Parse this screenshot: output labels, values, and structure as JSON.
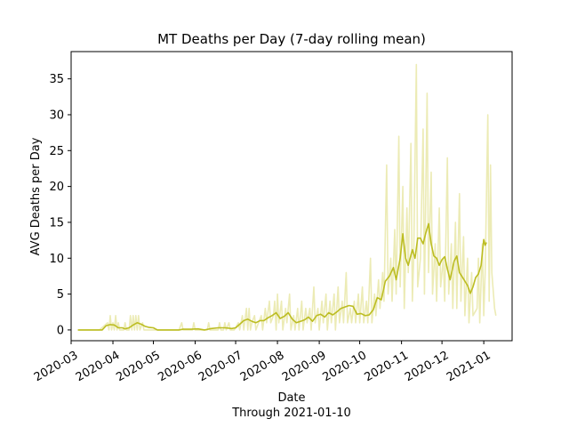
{
  "chart_data": {
    "type": "line",
    "title": "MT Deaths per Day (7-day rolling mean)",
    "xlabel": "Date",
    "xlabel_note": "Through 2021-01-10",
    "ylabel": "AVG Deaths per Day",
    "xlim": [
      "2020-03-01",
      "2021-01-22"
    ],
    "ylim": [
      -1.5,
      38.8
    ],
    "x_ticks": [
      "2020-03-01",
      "2020-04-01",
      "2020-05-01",
      "2020-06-01",
      "2020-07-01",
      "2020-08-01",
      "2020-09-01",
      "2020-10-01",
      "2020-11-01",
      "2020-12-01",
      "2021-01-01"
    ],
    "x_tick_labels": [
      "2020-03",
      "2020-04",
      "2020-05",
      "2020-06",
      "2020-07",
      "2020-08",
      "2020-09",
      "2020-10",
      "2020-11",
      "2020-12",
      "2021-01"
    ],
    "y_ticks": [
      0,
      5,
      10,
      15,
      20,
      25,
      30,
      35
    ],
    "y_tick_labels": [
      "0",
      "5",
      "10",
      "15",
      "20",
      "25",
      "30",
      "35"
    ],
    "grid": false,
    "legend": "none",
    "colors": {
      "mean": "#bcbd22",
      "daily": "#ecebb5"
    },
    "series": [
      {
        "role": "daily",
        "points": [
          [
            "2020-03-06",
            0
          ],
          [
            "2020-03-15",
            0
          ],
          [
            "2020-03-22",
            0
          ],
          [
            "2020-03-28",
            1
          ],
          [
            "2020-03-29",
            0
          ],
          [
            "2020-03-30",
            2
          ],
          [
            "2020-03-31",
            0
          ],
          [
            "2020-04-01",
            1
          ],
          [
            "2020-04-02",
            0
          ],
          [
            "2020-04-03",
            2
          ],
          [
            "2020-04-04",
            0
          ],
          [
            "2020-04-05",
            1
          ],
          [
            "2020-04-06",
            0
          ],
          [
            "2020-04-09",
            0
          ],
          [
            "2020-04-10",
            1
          ],
          [
            "2020-04-11",
            0
          ],
          [
            "2020-04-13",
            0
          ],
          [
            "2020-04-14",
            2
          ],
          [
            "2020-04-15",
            0
          ],
          [
            "2020-04-16",
            2
          ],
          [
            "2020-04-17",
            0
          ],
          [
            "2020-04-18",
            2
          ],
          [
            "2020-04-19",
            0
          ],
          [
            "2020-04-20",
            2
          ],
          [
            "2020-04-21",
            0
          ],
          [
            "2020-04-23",
            1
          ],
          [
            "2020-04-24",
            0
          ],
          [
            "2020-05-01",
            0
          ],
          [
            "2020-05-20",
            0
          ],
          [
            "2020-05-22",
            1
          ],
          [
            "2020-05-23",
            0
          ],
          [
            "2020-05-30",
            0
          ],
          [
            "2020-05-31",
            1
          ],
          [
            "2020-06-01",
            0
          ],
          [
            "2020-06-10",
            0
          ],
          [
            "2020-06-11",
            1
          ],
          [
            "2020-06-12",
            0
          ],
          [
            "2020-06-18",
            0
          ],
          [
            "2020-06-19",
            1
          ],
          [
            "2020-06-20",
            0
          ],
          [
            "2020-06-22",
            0
          ],
          [
            "2020-06-23",
            1
          ],
          [
            "2020-06-24",
            0
          ],
          [
            "2020-06-26",
            1
          ],
          [
            "2020-06-27",
            0
          ],
          [
            "2020-06-30",
            0
          ],
          [
            "2020-07-03",
            1
          ],
          [
            "2020-07-04",
            0
          ],
          [
            "2020-07-06",
            2
          ],
          [
            "2020-07-07",
            0
          ],
          [
            "2020-07-09",
            3
          ],
          [
            "2020-07-10",
            0
          ],
          [
            "2020-07-11",
            3
          ],
          [
            "2020-07-12",
            0
          ],
          [
            "2020-07-13",
            1
          ],
          [
            "2020-07-15",
            2
          ],
          [
            "2020-07-16",
            0
          ],
          [
            "2020-07-18",
            1
          ],
          [
            "2020-07-20",
            2
          ],
          [
            "2020-07-21",
            0
          ],
          [
            "2020-07-23",
            3
          ],
          [
            "2020-07-24",
            1
          ],
          [
            "2020-07-26",
            4
          ],
          [
            "2020-07-27",
            1
          ],
          [
            "2020-07-29",
            2
          ],
          [
            "2020-07-30",
            4
          ],
          [
            "2020-07-31",
            0
          ],
          [
            "2020-08-01",
            5
          ],
          [
            "2020-08-02",
            1
          ],
          [
            "2020-08-04",
            4
          ],
          [
            "2020-08-05",
            0
          ],
          [
            "2020-08-07",
            3
          ],
          [
            "2020-08-08",
            1
          ],
          [
            "2020-08-10",
            5
          ],
          [
            "2020-08-11",
            0
          ],
          [
            "2020-08-13",
            2
          ],
          [
            "2020-08-14",
            0
          ],
          [
            "2020-08-16",
            3
          ],
          [
            "2020-08-17",
            0
          ],
          [
            "2020-08-19",
            4
          ],
          [
            "2020-08-20",
            0
          ],
          [
            "2020-08-22",
            3
          ],
          [
            "2020-08-23",
            1
          ],
          [
            "2020-08-25",
            3
          ],
          [
            "2020-08-26",
            0
          ],
          [
            "2020-08-28",
            6
          ],
          [
            "2020-08-29",
            1
          ],
          [
            "2020-08-31",
            3
          ],
          [
            "2020-09-01",
            0
          ],
          [
            "2020-09-03",
            4
          ],
          [
            "2020-09-04",
            1
          ],
          [
            "2020-09-06",
            5
          ],
          [
            "2020-09-07",
            0
          ],
          [
            "2020-09-09",
            4
          ],
          [
            "2020-09-10",
            1
          ],
          [
            "2020-09-12",
            5
          ],
          [
            "2020-09-13",
            0
          ],
          [
            "2020-09-15",
            6
          ],
          [
            "2020-09-16",
            1
          ],
          [
            "2020-09-18",
            4
          ],
          [
            "2020-09-19",
            1
          ],
          [
            "2020-09-21",
            8
          ],
          [
            "2020-09-22",
            1
          ],
          [
            "2020-09-24",
            3
          ],
          [
            "2020-09-25",
            1
          ],
          [
            "2020-09-27",
            4
          ],
          [
            "2020-09-28",
            1
          ],
          [
            "2020-09-30",
            5
          ],
          [
            "2020-10-01",
            1
          ],
          [
            "2020-10-03",
            6
          ],
          [
            "2020-10-04",
            1
          ],
          [
            "2020-10-06",
            4
          ],
          [
            "2020-10-07",
            1
          ],
          [
            "2020-10-09",
            10
          ],
          [
            "2020-10-10",
            1
          ],
          [
            "2020-10-12",
            5
          ],
          [
            "2020-10-13",
            2
          ],
          [
            "2020-10-15",
            7
          ],
          [
            "2020-10-16",
            3
          ],
          [
            "2020-10-18",
            8
          ],
          [
            "2020-10-19",
            4
          ],
          [
            "2020-10-21",
            23
          ],
          [
            "2020-10-22",
            5
          ],
          [
            "2020-10-24",
            10
          ],
          [
            "2020-10-25",
            4
          ],
          [
            "2020-10-27",
            14
          ],
          [
            "2020-10-28",
            5
          ],
          [
            "2020-10-30",
            27
          ],
          [
            "2020-10-31",
            6
          ],
          [
            "2020-11-02",
            20
          ],
          [
            "2020-11-03",
            3
          ],
          [
            "2020-11-05",
            17
          ],
          [
            "2020-11-06",
            8
          ],
          [
            "2020-11-08",
            26
          ],
          [
            "2020-11-09",
            4
          ],
          [
            "2020-11-10",
            10
          ],
          [
            "2020-11-12",
            37
          ],
          [
            "2020-11-13",
            6
          ],
          [
            "2020-11-15",
            10
          ],
          [
            "2020-11-17",
            28
          ],
          [
            "2020-11-18",
            5
          ],
          [
            "2020-11-20",
            33
          ],
          [
            "2020-11-21",
            8
          ],
          [
            "2020-11-23",
            22
          ],
          [
            "2020-11-24",
            5
          ],
          [
            "2020-11-26",
            12
          ],
          [
            "2020-11-27",
            4
          ],
          [
            "2020-11-29",
            17
          ],
          [
            "2020-11-30",
            6
          ],
          [
            "2020-12-02",
            10
          ],
          [
            "2020-12-03",
            4
          ],
          [
            "2020-12-05",
            24
          ],
          [
            "2020-12-06",
            5
          ],
          [
            "2020-12-08",
            12
          ],
          [
            "2020-12-09",
            3
          ],
          [
            "2020-12-11",
            15
          ],
          [
            "2020-12-12",
            3
          ],
          [
            "2020-12-14",
            19
          ],
          [
            "2020-12-15",
            4
          ],
          [
            "2020-12-17",
            13
          ],
          [
            "2020-12-18",
            2
          ],
          [
            "2020-12-20",
            10
          ],
          [
            "2020-12-21",
            1
          ],
          [
            "2020-12-23",
            8
          ],
          [
            "2020-12-24",
            2
          ],
          [
            "2020-12-27",
            3
          ],
          [
            "2020-12-28",
            10
          ],
          [
            "2020-12-29",
            1
          ],
          [
            "2020-12-31",
            12
          ],
          [
            "2021-01-01",
            2
          ],
          [
            "2021-01-02",
            8
          ],
          [
            "2021-01-04",
            30
          ],
          [
            "2021-01-05",
            4
          ],
          [
            "2021-01-06",
            23
          ],
          [
            "2021-01-07",
            8
          ],
          [
            "2021-01-09",
            3
          ],
          [
            "2021-01-10",
            2
          ]
        ]
      },
      {
        "role": "mean",
        "points": [
          [
            "2020-03-06",
            0
          ],
          [
            "2020-03-20",
            0
          ],
          [
            "2020-03-24",
            0
          ],
          [
            "2020-03-27",
            0.6
          ],
          [
            "2020-03-30",
            0.75
          ],
          [
            "2020-04-02",
            0.7
          ],
          [
            "2020-04-05",
            0.3
          ],
          [
            "2020-04-08",
            0.3
          ],
          [
            "2020-04-10",
            0.15
          ],
          [
            "2020-04-13",
            0.3
          ],
          [
            "2020-04-16",
            0.7
          ],
          [
            "2020-04-19",
            1.0
          ],
          [
            "2020-04-22",
            0.8
          ],
          [
            "2020-04-25",
            0.5
          ],
          [
            "2020-04-28",
            0.35
          ],
          [
            "2020-05-01",
            0.3
          ],
          [
            "2020-05-04",
            0
          ],
          [
            "2020-05-20",
            0
          ],
          [
            "2020-05-23",
            0.1
          ],
          [
            "2020-05-29",
            0.1
          ],
          [
            "2020-06-03",
            0.15
          ],
          [
            "2020-06-08",
            0
          ],
          [
            "2020-06-13",
            0.2
          ],
          [
            "2020-06-18",
            0.3
          ],
          [
            "2020-06-23",
            0.3
          ],
          [
            "2020-06-28",
            0.2
          ],
          [
            "2020-07-01",
            0.3
          ],
          [
            "2020-07-04",
            0.8
          ],
          [
            "2020-07-07",
            1.3
          ],
          [
            "2020-07-10",
            1.5
          ],
          [
            "2020-07-13",
            1.2
          ],
          [
            "2020-07-16",
            1.0
          ],
          [
            "2020-07-19",
            1.3
          ],
          [
            "2020-07-22",
            1.3
          ],
          [
            "2020-07-25",
            1.7
          ],
          [
            "2020-07-28",
            2.0
          ],
          [
            "2020-07-31",
            2.4
          ],
          [
            "2020-08-03",
            1.6
          ],
          [
            "2020-08-06",
            1.9
          ],
          [
            "2020-08-09",
            2.4
          ],
          [
            "2020-08-12",
            1.5
          ],
          [
            "2020-08-15",
            1.0
          ],
          [
            "2020-08-18",
            1.2
          ],
          [
            "2020-08-21",
            1.4
          ],
          [
            "2020-08-24",
            1.8
          ],
          [
            "2020-08-27",
            1.2
          ],
          [
            "2020-08-30",
            2.0
          ],
          [
            "2020-09-02",
            2.2
          ],
          [
            "2020-09-05",
            1.8
          ],
          [
            "2020-09-08",
            2.4
          ],
          [
            "2020-09-11",
            2.1
          ],
          [
            "2020-09-14",
            2.5
          ],
          [
            "2020-09-17",
            3.0
          ],
          [
            "2020-09-20",
            3.2
          ],
          [
            "2020-09-23",
            3.4
          ],
          [
            "2020-09-26",
            3.3
          ],
          [
            "2020-09-29",
            2.2
          ],
          [
            "2020-10-02",
            2.3
          ],
          [
            "2020-10-05",
            2.0
          ],
          [
            "2020-10-08",
            2.1
          ],
          [
            "2020-10-11",
            2.8
          ],
          [
            "2020-10-14",
            4.5
          ],
          [
            "2020-10-17",
            4.2
          ],
          [
            "2020-10-20",
            6.8
          ],
          [
            "2020-10-23",
            7.5
          ],
          [
            "2020-10-26",
            8.7
          ],
          [
            "2020-10-28",
            7.0
          ],
          [
            "2020-10-31",
            10.0
          ],
          [
            "2020-11-02",
            13.4
          ],
          [
            "2020-11-04",
            10.0
          ],
          [
            "2020-11-06",
            9.0
          ],
          [
            "2020-11-09",
            11.2
          ],
          [
            "2020-11-11",
            10.0
          ],
          [
            "2020-11-13",
            12.8
          ],
          [
            "2020-11-15",
            12.8
          ],
          [
            "2020-11-17",
            12.0
          ],
          [
            "2020-11-19",
            13.5
          ],
          [
            "2020-11-21",
            14.8
          ],
          [
            "2020-11-23",
            12.0
          ],
          [
            "2020-11-25",
            10.3
          ],
          [
            "2020-11-27",
            10.0
          ],
          [
            "2020-11-29",
            9.0
          ],
          [
            "2020-12-01",
            9.8
          ],
          [
            "2020-12-03",
            10.2
          ],
          [
            "2020-12-05",
            8.5
          ],
          [
            "2020-12-07",
            7.0
          ],
          [
            "2020-12-10",
            9.6
          ],
          [
            "2020-12-12",
            10.3
          ],
          [
            "2020-12-14",
            8.0
          ],
          [
            "2020-12-16",
            7.4
          ],
          [
            "2020-12-18",
            6.8
          ],
          [
            "2020-12-20",
            6.2
          ],
          [
            "2020-12-22",
            5.1
          ],
          [
            "2020-12-24",
            6.0
          ],
          [
            "2020-12-26",
            7.3
          ],
          [
            "2020-12-28",
            7.8
          ],
          [
            "2020-12-30",
            9.0
          ],
          [
            "2021-01-01",
            12.6
          ],
          [
            "2021-01-02",
            11.8
          ],
          [
            "2021-01-03",
            12.2
          ]
        ]
      }
    ]
  }
}
